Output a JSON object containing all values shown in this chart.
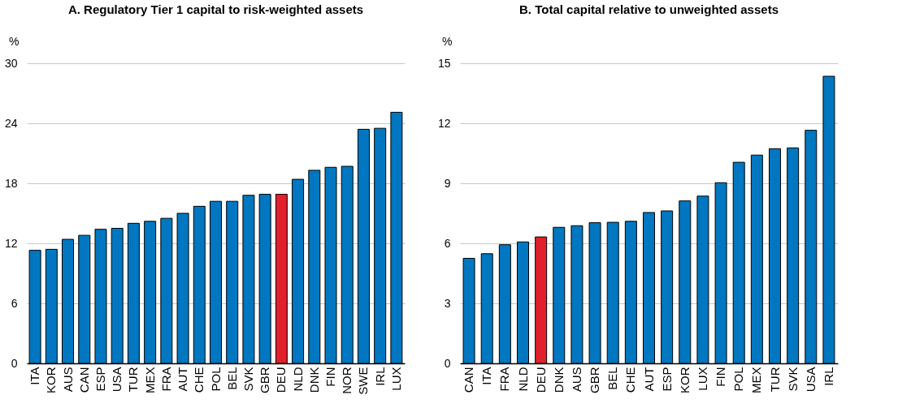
{
  "chart_data": [
    {
      "type": "bar",
      "title": "A. Regulatory Tier 1 capital to risk-weighted assets",
      "ylabel": "%",
      "categories": [
        "ITA",
        "KOR",
        "AUS",
        "CAN",
        "ESP",
        "USA",
        "TUR",
        "MEX",
        "FRA",
        "AUT",
        "CHE",
        "POL",
        "BEL",
        "SVK",
        "GBR",
        "DEU",
        "NLD",
        "DNK",
        "FIN",
        "NOR",
        "SWE",
        "IRL",
        "LUX"
      ],
      "values": [
        11.3,
        11.4,
        12.4,
        12.8,
        13.4,
        13.5,
        14.0,
        14.2,
        14.5,
        15.0,
        15.7,
        16.2,
        16.2,
        16.8,
        16.9,
        16.9,
        18.4,
        19.3,
        19.6,
        19.7,
        23.4,
        23.5,
        25.1
      ],
      "colors": [
        "#0077c0",
        "#0077c0",
        "#0077c0",
        "#0077c0",
        "#0077c0",
        "#0077c0",
        "#0077c0",
        "#0077c0",
        "#0077c0",
        "#0077c0",
        "#0077c0",
        "#0077c0",
        "#0077c0",
        "#0077c0",
        "#0077c0",
        "#e0202a",
        "#0077c0",
        "#0077c0",
        "#0077c0",
        "#0077c0",
        "#0077c0",
        "#0077c0",
        "#0077c0"
      ],
      "ylim": [
        0,
        30
      ],
      "yticks": [
        0,
        6,
        12,
        18,
        24,
        30
      ],
      "grid": "y"
    },
    {
      "type": "bar",
      "title": "B. Total capital relative to unweighted assets",
      "ylabel": "%",
      "categories": [
        "CAN",
        "ITA",
        "FRA",
        "NLD",
        "DEU",
        "DNK",
        "AUS",
        "GBR",
        "BEL",
        "CHE",
        "AUT",
        "ESP",
        "KOR",
        "LUX",
        "FIN",
        "POL",
        "MEX",
        "TUR",
        "SVK",
        "USA",
        "IRL"
      ],
      "values": [
        5.25,
        5.48,
        5.93,
        6.07,
        6.32,
        6.8,
        6.88,
        7.03,
        7.05,
        7.1,
        7.54,
        7.62,
        8.12,
        8.36,
        9.03,
        10.05,
        10.41,
        10.73,
        10.77,
        11.65,
        14.35
      ],
      "colors": [
        "#0077c0",
        "#0077c0",
        "#0077c0",
        "#0077c0",
        "#e0202a",
        "#0077c0",
        "#0077c0",
        "#0077c0",
        "#0077c0",
        "#0077c0",
        "#0077c0",
        "#0077c0",
        "#0077c0",
        "#0077c0",
        "#0077c0",
        "#0077c0",
        "#0077c0",
        "#0077c0",
        "#0077c0",
        "#0077c0",
        "#0077c0"
      ],
      "ylim": [
        0,
        15
      ],
      "yticks": [
        0,
        3,
        6,
        9,
        12,
        15
      ],
      "grid": "y"
    }
  ]
}
